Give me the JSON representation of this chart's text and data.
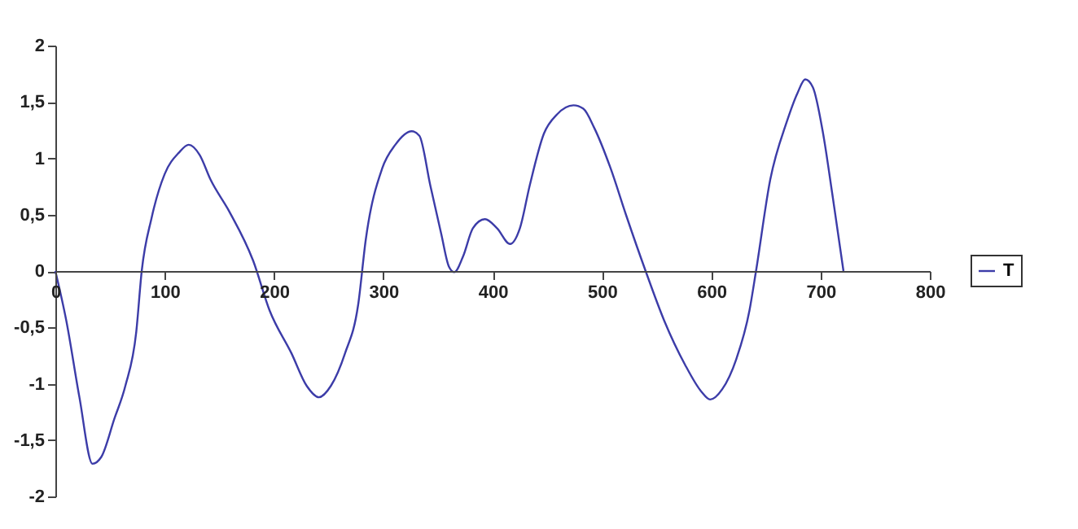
{
  "chart_data": {
    "type": "line",
    "xlim": [
      0,
      800
    ],
    "xticks": [
      0,
      100,
      200,
      300,
      400,
      500,
      600,
      700,
      800
    ],
    "ylim": [
      -2,
      2
    ],
    "yticks": [
      {
        "value": -2,
        "label": "-2"
      },
      {
        "value": -1.5,
        "label": "-1,5"
      },
      {
        "value": -1,
        "label": "-1"
      },
      {
        "value": -0.5,
        "label": "-0,5"
      },
      {
        "value": 0,
        "label": "0"
      },
      {
        "value": 0.5,
        "label": "0,5"
      },
      {
        "value": 1,
        "label": "1"
      },
      {
        "value": 1.5,
        "label": "1,5"
      },
      {
        "value": 2,
        "label": "2"
      }
    ],
    "grid": false,
    "legend": "right",
    "marker": "none",
    "line_style": "solid",
    "series": [
      {
        "name": "T",
        "color": "#3c3ca8",
        "x": [
          0,
          10,
          22,
          34,
          42,
          54,
          64,
          74,
          79,
          88,
          100,
          113,
          122,
          132,
          142,
          159,
          181,
          196,
          216,
          230,
          241,
          252,
          265,
          277,
          284,
          299,
          311,
          326,
          333,
          343,
          353,
          360,
          365,
          373,
          382,
          393,
          404,
          416,
          425,
          434,
          447,
          459,
          474,
          483,
          493,
          508,
          522,
          540,
          557,
          576,
          591,
          599,
          610,
          623,
          635,
          641,
          654,
          669,
          679,
          686,
          693,
          702,
          711,
          721
        ],
        "values": [
          0,
          -0.44,
          -1.12,
          -1.71,
          -1.65,
          -1.31,
          -1.02,
          -0.54,
          0,
          0.47,
          0.86,
          1.05,
          1.12,
          1.03,
          0.81,
          0.53,
          0.09,
          -0.35,
          -0.73,
          -1.02,
          -1.12,
          -1.02,
          -0.73,
          -0.3,
          0.28,
          0.91,
          1.12,
          1.24,
          1.2,
          0.76,
          0.33,
          0.04,
          -0.01,
          0.13,
          0.38,
          0.46,
          0.38,
          0.24,
          0.38,
          0.76,
          1.22,
          1.39,
          1.47,
          1.44,
          1.27,
          0.91,
          0.5,
          0,
          -0.44,
          -0.83,
          -1.07,
          -1.14,
          -1.05,
          -0.78,
          -0.35,
          0,
          0.81,
          1.32,
          1.58,
          1.7,
          1.63,
          1.24,
          0.67,
          0
        ]
      }
    ]
  }
}
